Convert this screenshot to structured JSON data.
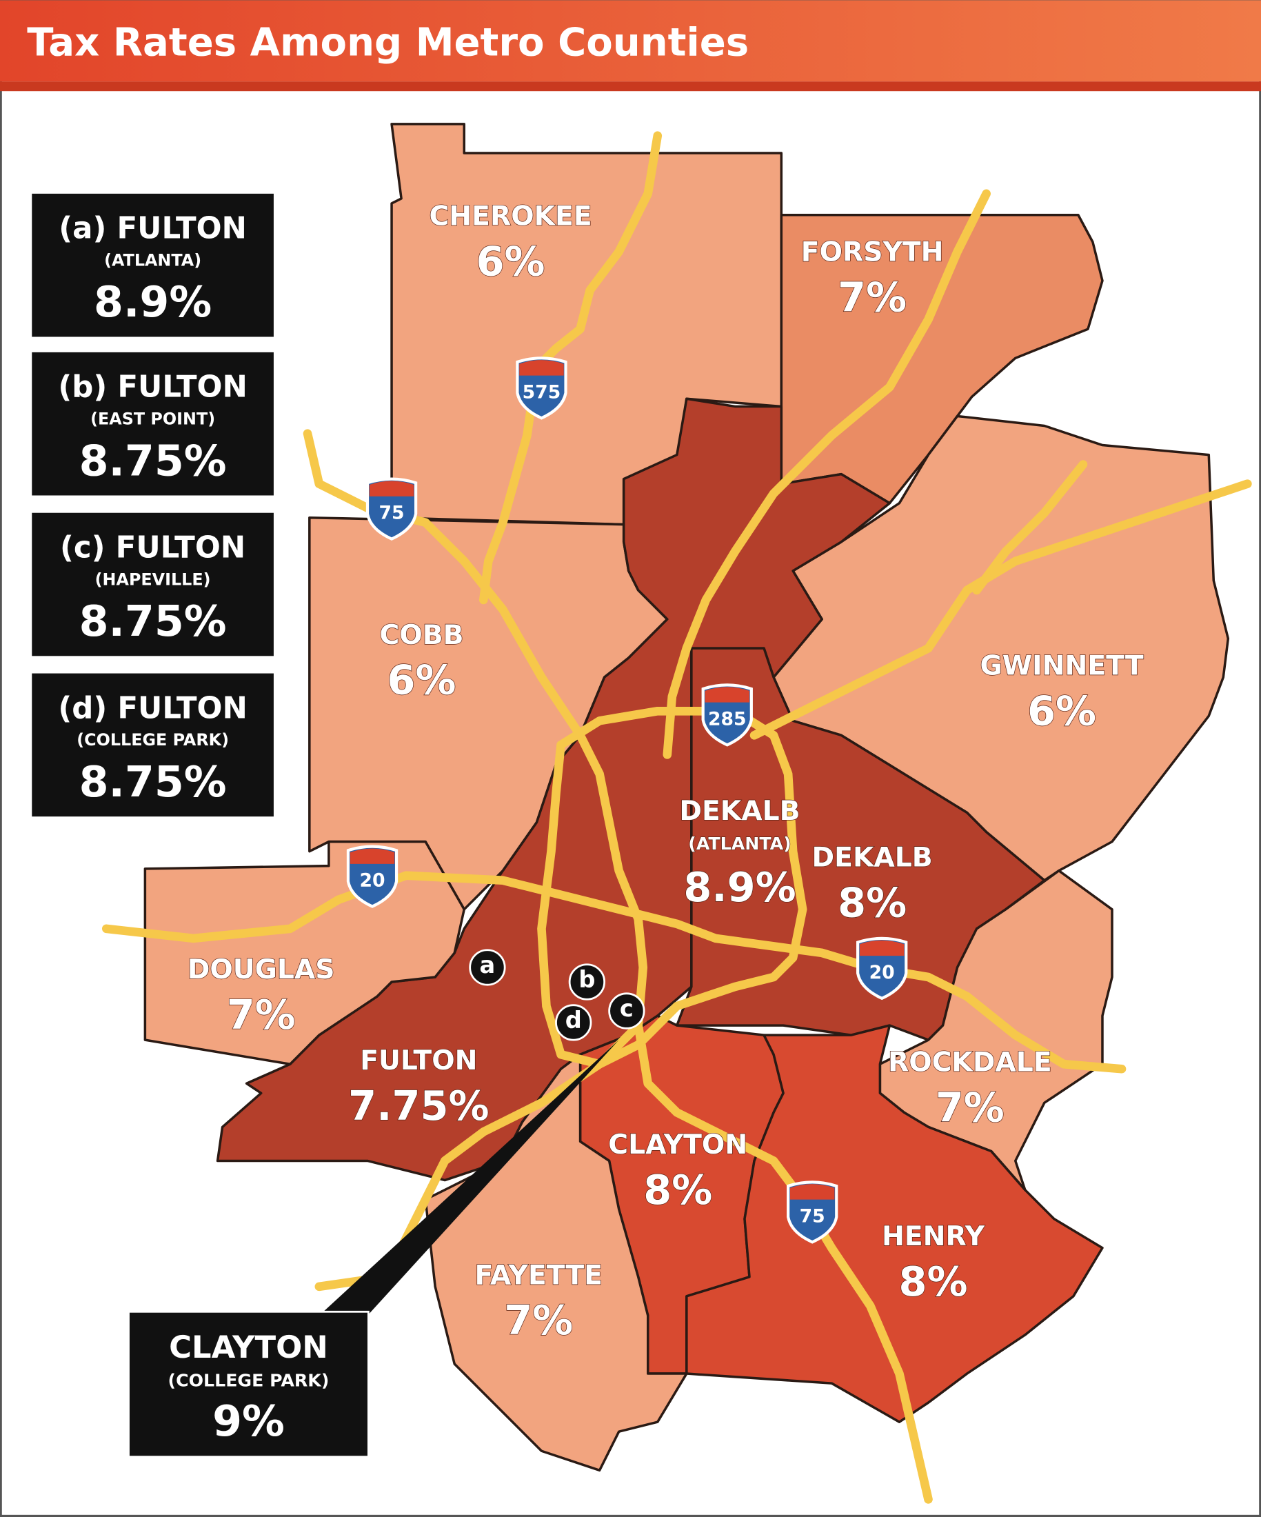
{
  "title": "Tax Rates Among Metro Counties",
  "legend": [
    {
      "county": "(a) FULTON",
      "city": "(ATLANTA)",
      "rate": "8.9%"
    },
    {
      "county": "(b) FULTON",
      "city": "(EAST POINT)",
      "rate": "8.75%"
    },
    {
      "county": "(c) FULTON",
      "city": "(HAPEVILLE)",
      "rate": "8.75%"
    },
    {
      "county": "(d) FULTON",
      "city": "(COLLEGE PARK)",
      "rate": "8.75%"
    }
  ],
  "counties": [
    {
      "name": "CHEROKEE",
      "rate": "6%"
    },
    {
      "name": "FORSYTH",
      "rate": "7%"
    },
    {
      "name": "COBB",
      "rate": "6%"
    },
    {
      "name": "GWINNETT",
      "rate": "6%"
    },
    {
      "name": "DEKALB",
      "city": "(ATLANTA)",
      "rate": "8.9%"
    },
    {
      "name": "DEKALB",
      "rate": "8%"
    },
    {
      "name": "DOUGLAS",
      "rate": "7%"
    },
    {
      "name": "FULTON",
      "rate": "7.75%"
    },
    {
      "name": "ROCKDALE",
      "rate": "7%"
    },
    {
      "name": "CLAYTON",
      "rate": "8%"
    },
    {
      "name": "HENRY",
      "rate": "8%"
    },
    {
      "name": "FAYETTE",
      "rate": "7%"
    }
  ],
  "highways": [
    "575",
    "75",
    "285",
    "20",
    "20",
    "75"
  ],
  "markers": [
    "a",
    "b",
    "c",
    "d"
  ],
  "callout": {
    "county": "CLAYTON",
    "city": "(COLLEGE PARK)",
    "rate": "9%"
  }
}
